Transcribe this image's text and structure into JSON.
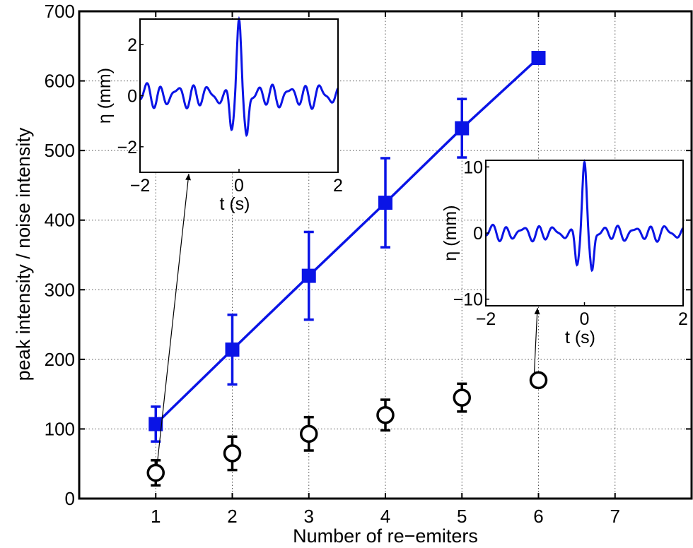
{
  "chart_data": {
    "type": "scatter",
    "xlabel": "Number of re−emiters",
    "ylabel": "peak intensity / noise intensity",
    "xlim": [
      0,
      8
    ],
    "ylim": [
      0,
      700
    ],
    "xticks": [
      1,
      2,
      3,
      4,
      5,
      6,
      7
    ],
    "yticks": [
      0,
      100,
      200,
      300,
      400,
      500,
      600,
      700
    ],
    "grid": true,
    "series": [
      {
        "color": "#0a14e6",
        "marker": "square",
        "line": true,
        "x": [
          1,
          2,
          3,
          4,
          5,
          6
        ],
        "y": [
          107,
          214,
          320,
          425,
          532,
          633
        ],
        "err": [
          25,
          50,
          63,
          64,
          42,
          null
        ]
      },
      {
        "color": "#000000",
        "marker": "circle",
        "line": false,
        "x": [
          1,
          2,
          3,
          4,
          5,
          6
        ],
        "y": [
          37,
          65,
          93,
          120,
          145,
          170
        ],
        "err": [
          18,
          24,
          24,
          22,
          20,
          3
        ]
      }
    ],
    "insets": [
      {
        "xlabel": "t (s)",
        "ylabel": "η  (mm)",
        "xlim": [
          -2,
          2
        ],
        "ylim": [
          -3,
          3
        ],
        "xticks": [
          -2,
          0,
          2
        ],
        "xtick_labels": [
          "−2",
          "0",
          "2"
        ],
        "yticks": [
          2,
          0,
          -2
        ],
        "ytick_labels": [
          "2",
          "0",
          "−2"
        ],
        "signal": {
          "peak": 2.9,
          "trough": -2.2,
          "noise": 0.55
        },
        "points_to": {
          "series": 1,
          "x": 1
        }
      },
      {
        "xlabel": "t (s)",
        "ylabel": "η  (mm)",
        "xlim": [
          -2,
          2
        ],
        "ylim": [
          -11,
          11
        ],
        "xticks": [
          -2,
          0,
          2
        ],
        "xtick_labels": [
          "−2",
          "0",
          "2"
        ],
        "yticks": [
          10,
          0,
          -10
        ],
        "ytick_labels": [
          "10",
          "0",
          "−10"
        ],
        "signal": {
          "peak": 10.5,
          "trough": -8.2,
          "noise": 1.4
        },
        "points_to": {
          "series": 1,
          "x": 6
        }
      }
    ]
  }
}
